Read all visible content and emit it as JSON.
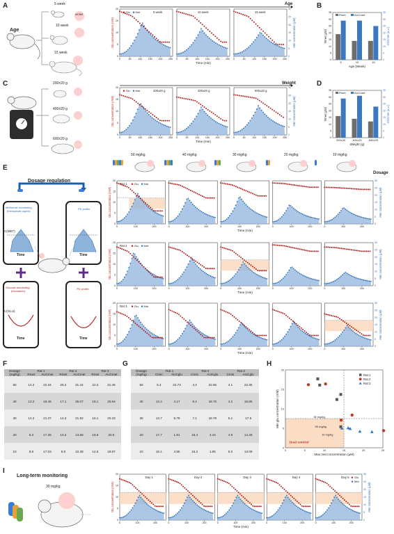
{
  "panel_labels": {
    "A": "A",
    "B": "B",
    "C": "C",
    "D": "D",
    "E": "E",
    "F": "F",
    "G": "G",
    "H": "H",
    "I": "I"
  },
  "age": {
    "title": "Age",
    "groups": [
      "5 week",
      "10 week",
      "15 week"
    ],
    "axis_title": "Age",
    "ylabel_left": "Glu concentration (mM)",
    "ylabel_right": "Met concentration (μM)",
    "xlabel": "Time (min)",
    "legend": [
      "Glu",
      "Met"
    ]
  },
  "weight": {
    "title": "Weight",
    "groups": [
      "200±20 g",
      "400±20 g",
      "600±20 g"
    ],
    "axis_title": "Weight",
    "ylabel_left": "Glu concentration (mM)",
    "ylabel_right": "Met concentration (μM)",
    "xlabel": "Time (min)",
    "legend": [
      "Glu",
      "Met"
    ]
  },
  "device_label": "MCBM",
  "dosage": {
    "title": "Dosage regulation",
    "axis_title": "Dosage",
    "doses": [
      "50 mg/kg",
      "40 mg/kg",
      "30 mg/kg",
      "20 mg/kg",
      "10 mg/kg"
    ],
    "rats": [
      "Rat 1",
      "Rat 2",
      "Rat 3"
    ],
    "ylabel_left": "Glu concentration (mM)",
    "ylabel_right": "Met concentration (μM)",
    "xlabel": "Time (min)",
    "legend": [
      "Glu",
      "Met"
    ],
    "phone_top_left": {
      "title": "Metformin monitoring",
      "subtitle": "(therapeutic agent)",
      "ylabel": "C(MET)",
      "xlabel": "Time"
    },
    "phone_top_right": {
      "title": "PK profile",
      "xlabel": "Time"
    },
    "phone_bottom_left": {
      "title": "Glucose monitoring",
      "subtitle": "(biomarker)",
      "ylabel": "C(GLU)",
      "xlabel": "Time"
    },
    "phone_bottom_right": {
      "title": "PD profile",
      "xlabel": "Time"
    }
  },
  "longterm": {
    "title": "Long-term monitoring",
    "dose": "30 mg/kg",
    "days": [
      "Day 1",
      "Day 2",
      "Day 3",
      "Day 4",
      "Day 5"
    ],
    "ylabel_left": "Glu concentration (mM)",
    "ylabel_right": "Met concentration (μM)",
    "xlabel": "Time (min)",
    "legend": [
      "Glu",
      "Met"
    ]
  },
  "tableF": {
    "header_top": [
      "Dosage (mg/kg)",
      "Rat 1",
      "Rat 2",
      "Rat 3"
    ],
    "header_sub": [
      "Rmet",
      "AUCmet",
      "Rmet",
      "AUCmet",
      "Rmet",
      "AUCmet"
    ],
    "rows": [
      [
        "50",
        "14.2",
        "22.34",
        "25.2",
        "31.44",
        "22.2",
        "31.46"
      ],
      [
        "40",
        "13.2",
        "19.46",
        "17.1",
        "25.07",
        "19.1",
        "25.94"
      ],
      [
        "30",
        "14.2",
        "21.37",
        "14.3",
        "21.92",
        "16.1",
        "20.33"
      ],
      [
        "20",
        "8.3",
        "17.39",
        "10.3",
        "13.88",
        "16.6",
        "20.5"
      ],
      [
        "10",
        "8.8",
        "17.03",
        "5.9",
        "10.38",
        "14.5",
        "19.87"
      ]
    ]
  },
  "tableG": {
    "header_top": [
      "Dosage (mg/kg)",
      "Rat 1",
      "Rat 2",
      "Rat 3"
    ],
    "header_sub": [
      "Cmin",
      "AUCglu",
      "Cmin",
      "AUCglu",
      "Cmin",
      "AUCglu"
    ],
    "rows": [
      [
        "50",
        "5.4",
        "22.73",
        "4.4",
        "22.65",
        "4.1",
        "22.35"
      ],
      [
        "40",
        "12.4",
        "4.17",
        "8.4",
        "18.76",
        "4.2",
        "16.85"
      ],
      [
        "30",
        "13.7",
        "5.79",
        "7.1",
        "18.79",
        "5.1",
        "17.5"
      ],
      [
        "20",
        "17.7",
        "1.91",
        "16.4",
        "4.44",
        "4.9",
        "14.48"
      ],
      [
        "10",
        "16.1",
        "4.55",
        "16.2",
        "1.85",
        "5.0",
        "13.09"
      ]
    ]
  },
  "chart_data": [
    {
      "type": "bar",
      "panel": "B",
      "categories": [
        "5",
        "10",
        "15"
      ],
      "series": [
        {
          "name": "Rmet",
          "values": [
            19,
            14,
            14
          ]
        },
        {
          "name": "AUCmet",
          "values": [
            29,
            29,
            25
          ]
        }
      ],
      "xlabel": "Age (Week)",
      "ylabel": "Rmet (μM)",
      "ylabel_right": "AUCmet (a.u.)",
      "ylim": [
        0,
        35
      ],
      "yticks": [
        0,
        5,
        10,
        15,
        20,
        25,
        30,
        35
      ],
      "legend_position": "top"
    },
    {
      "type": "bar",
      "panel": "D",
      "categories": [
        "200±20",
        "400±20",
        "600±20"
      ],
      "series": [
        {
          "name": "Rmet",
          "values": [
            16,
            14,
            12
          ]
        },
        {
          "name": "AUCmet",
          "values": [
            29,
            31,
            23
          ]
        }
      ],
      "xlabel": "Weight (g)",
      "ylabel": "Rmet (μM)",
      "ylabel_right": "AUCmet (a.u.)",
      "ylim": [
        0,
        35
      ],
      "yticks": [
        0,
        5,
        10,
        15,
        20,
        25,
        30,
        35
      ],
      "legend_position": "top"
    },
    {
      "type": "scatter",
      "panel": "H",
      "xlabel": "Max met concentration (μM)",
      "ylabel": "Min glu concentration (mM)",
      "xlim": [
        0,
        25
      ],
      "ylim": [
        0,
        20
      ],
      "xticks": [
        0,
        5,
        10,
        15,
        20,
        25
      ],
      "yticks": [
        0,
        5,
        10,
        15,
        20
      ],
      "series": [
        {
          "name": "Rat 1",
          "x": [
            8.8,
            8.3,
            14.2,
            13.2,
            14.2
          ],
          "y": [
            16.1,
            17.7,
            13.7,
            12.4,
            5.4
          ]
        },
        {
          "name": "Rat 2",
          "x": [
            5.9,
            10.3,
            14.3,
            17.1,
            25.2
          ],
          "y": [
            16.2,
            16.4,
            7.1,
            8.4,
            4.4
          ]
        },
        {
          "name": "Rat 3",
          "x": [
            14.5,
            16.6,
            16.1,
            19.1,
            22.2
          ],
          "y": [
            5.0,
            4.9,
            5.1,
            4.2,
            4.1
          ]
        }
      ],
      "annotations": [
        "30 mg/kg",
        "50 mg/kg",
        "10 mg/kg",
        "Dual control"
      ],
      "legend_position": "top-right"
    }
  ],
  "colors": {
    "glu": "#b22222",
    "met": "#2f6fb5",
    "met_fill": "#8fb4dc",
    "target": "#fbd9bf",
    "b_rmet": "#6e6e6e",
    "b_auc": "#3a78c2",
    "rat1": "#555555",
    "rat2": "#c0392b",
    "rat3": "#2f78c4"
  }
}
